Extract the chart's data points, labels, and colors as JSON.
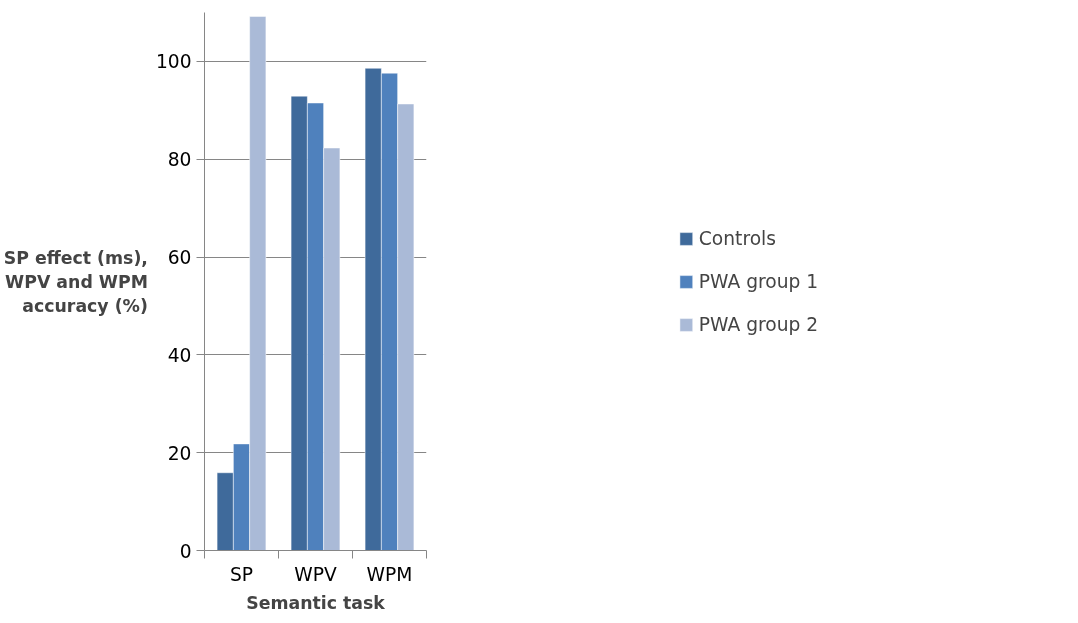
{
  "chart_data": {
    "type": "bar",
    "xlabel": "Semantic task",
    "ylabel": "SP effect (ms), WPV and WPM accuracy (%)",
    "categories": [
      "SP",
      "WPV",
      "WPM"
    ],
    "series": [
      {
        "name": "Controls",
        "color": "#3f6a9b",
        "values": [
          15.9,
          92.9,
          98.6
        ]
      },
      {
        "name": "PWA group 1",
        "color": "#4f81bd",
        "values": [
          21.8,
          91.5,
          97.6
        ]
      },
      {
        "name": "PWA group 2",
        "color": "#aabad7",
        "values": [
          109.2,
          82.3,
          91.3
        ]
      }
    ],
    "ylim": [
      0,
      110
    ],
    "yticks": [
      0,
      20,
      40,
      60,
      80,
      100
    ],
    "grid": "y",
    "legend": "right"
  }
}
